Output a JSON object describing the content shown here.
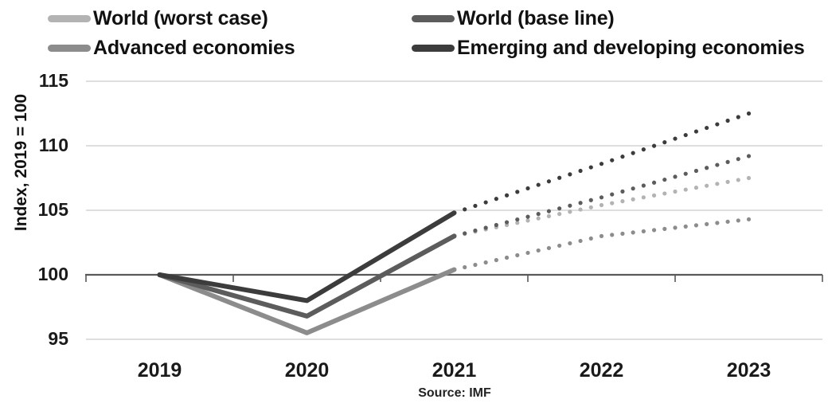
{
  "figure": {
    "y_axis_title": "Index, 2019 = 100",
    "source_note": "Source: IMF"
  },
  "colors": {
    "grid": "#d9d9d9",
    "axis": "#595959",
    "text": "#1a1a1a"
  },
  "legend": {
    "items": [
      {
        "label": "World (worst case)",
        "color": "#b3b3b3"
      },
      {
        "label": "World (base line)",
        "color": "#5c5c5c"
      },
      {
        "label": "Advanced economies",
        "color": "#8c8c8c"
      },
      {
        "label": "Emerging and developing economies",
        "color": "#3c3c3c"
      }
    ]
  },
  "chart_data": {
    "type": "line",
    "title": "",
    "x_categories": [
      "2019",
      "2020",
      "2021",
      "2022",
      "2023"
    ],
    "xlabel": "",
    "ylabel": "Index, 2019 = 100",
    "ylim": [
      95,
      115
    ],
    "yticks": [
      95,
      100,
      105,
      110,
      115
    ],
    "baseline_value": 100,
    "grid": "horizontal",
    "legend_position": "top",
    "style_note": "solid lines 2019-2021 (history), dotted lines 2021-2023 (forecast)",
    "solid_through_index": 2,
    "series": [
      {
        "name": "World (worst case)",
        "color": "#b3b3b3",
        "values": [
          100,
          96.8,
          103.0,
          105.4,
          107.5
        ]
      },
      {
        "name": "World (base line)",
        "color": "#5c5c5c",
        "values": [
          100,
          96.8,
          103.0,
          106.0,
          109.2
        ]
      },
      {
        "name": "Advanced economies",
        "color": "#8c8c8c",
        "values": [
          100,
          95.5,
          100.4,
          103.0,
          104.3
        ]
      },
      {
        "name": "Emerging and developing economies",
        "color": "#3c3c3c",
        "values": [
          100,
          98.0,
          104.8,
          108.6,
          112.5
        ]
      }
    ],
    "draw_order": [
      0,
      2,
      1,
      3
    ],
    "source": "Source: IMF"
  }
}
